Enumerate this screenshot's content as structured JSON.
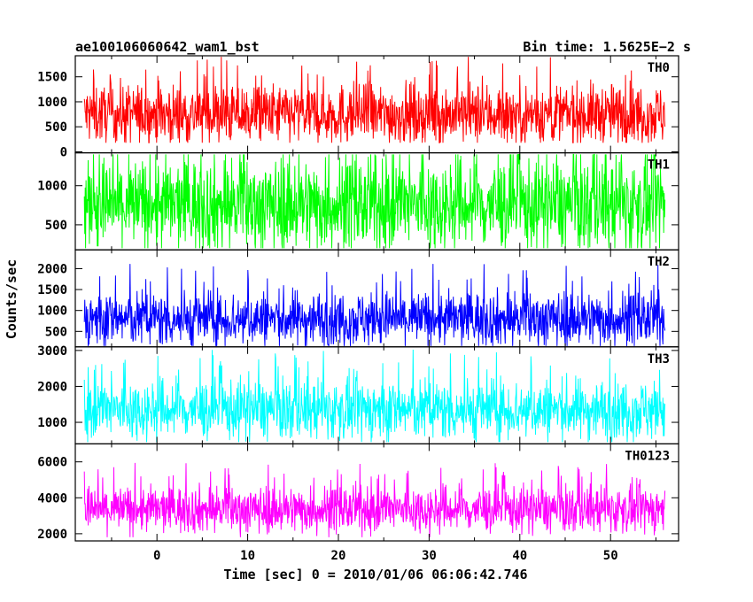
{
  "header": {
    "title": "ae100106060642_wam1_bst",
    "bin_time": "Bin time: 1.5625E−2 s"
  },
  "chart_data": {
    "type": "line",
    "title": "ae100106060642_wam1_bst",
    "xlabel": "Time [sec] 0 = 2010/01/06 06:06:42.746",
    "ylabel": "Counts/sec",
    "xlim": [
      -9,
      57.5
    ],
    "x_ticks": [
      0,
      10,
      20,
      30,
      40,
      50
    ],
    "x_range_data": [
      -8,
      56
    ],
    "panels": [
      {
        "name": "TH0",
        "color": "#ff0000",
        "ylim": [
          -20,
          1920
        ],
        "yticks": [
          0,
          500,
          1000,
          1500
        ],
        "base": 750,
        "spread": 300,
        "min": 180,
        "max": 1900
      },
      {
        "name": "TH1",
        "color": "#00ff00",
        "ylim": [
          180,
          1420
        ],
        "yticks": [
          500,
          1000
        ],
        "base": 750,
        "spread": 300,
        "min": 200,
        "max": 1400
      },
      {
        "name": "TH2",
        "color": "#0000ff",
        "ylim": [
          130,
          2450
        ],
        "yticks": [
          500,
          1000,
          1500,
          2000
        ],
        "base": 800,
        "spread": 330,
        "min": 150,
        "max": 2350
      },
      {
        "name": "TH3",
        "color": "#00ffff",
        "ylim": [
          400,
          3100
        ],
        "yticks": [
          1000,
          2000,
          3000
        ],
        "base": 1350,
        "spread": 420,
        "min": 450,
        "max": 3100
      },
      {
        "name": "TH0123",
        "color": "#ff00ff",
        "ylim": [
          1600,
          7000
        ],
        "yticks": [
          2000,
          4000,
          6000
        ],
        "base": 3350,
        "spread": 650,
        "min": 1800,
        "max": 7000
      }
    ]
  }
}
